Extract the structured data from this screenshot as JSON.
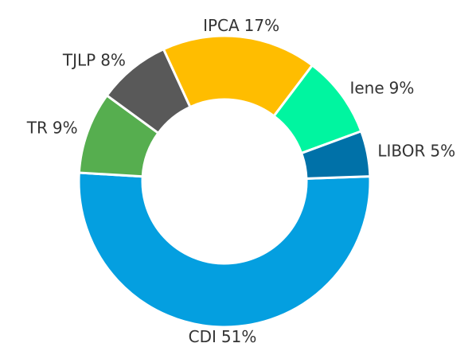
{
  "chart_data": {
    "type": "pie",
    "categories": [
      "CDI",
      "TR",
      "TJLP",
      "IPCA",
      "Iene",
      "LIBOR"
    ],
    "values": [
      51,
      9,
      8,
      17,
      9,
      5
    ],
    "value_labels": [
      "51%",
      "9%",
      "8%",
      "17%",
      "9%",
      "5%"
    ],
    "colors": [
      "#049fe0",
      "#56ae4f",
      "#595959",
      "#ffbd00",
      "#00f5a0",
      "#0071a8"
    ],
    "hole": true
  }
}
